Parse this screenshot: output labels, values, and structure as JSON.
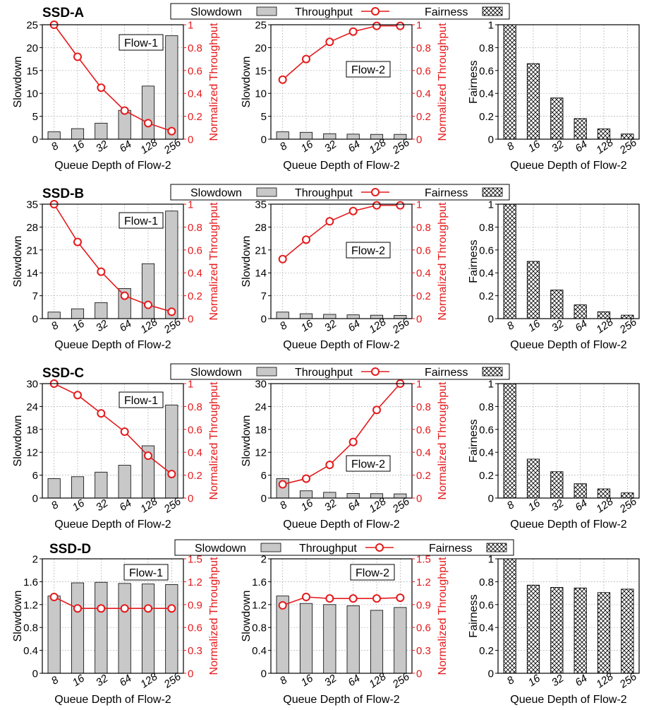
{
  "figure": {
    "legend": {
      "slowdown": "Slowdown",
      "throughput": "Throughput",
      "fairness": "Fairness"
    },
    "xlabel": "Queue Depth of Flow-2",
    "ylabel_slowdown": "Slowdown",
    "ylabel_throughput": "Normalized Throughput",
    "ylabel_fairness": "Fairness",
    "colors": {
      "bar": "#c8c8c8",
      "throughput": "#e41a1c",
      "axis": "#000000",
      "grid": "#b0b0b0"
    }
  },
  "chart_data": [
    {
      "ssd": "SSD-A",
      "categories": [
        "8",
        "16",
        "32",
        "64",
        "128",
        "256"
      ],
      "flow1": {
        "type": "bar+line",
        "label": "Flow-1",
        "slowdown": [
          1.6,
          2.3,
          3.5,
          6.3,
          11.6,
          22.6
        ],
        "throughput": [
          1.0,
          0.72,
          0.45,
          0.25,
          0.14,
          0.07
        ],
        "y1lim": [
          0,
          25
        ],
        "y1ticks": [
          0,
          5,
          10,
          15,
          20,
          25
        ],
        "y2lim": [
          0,
          1
        ],
        "y2ticks": [
          0,
          0.2,
          0.4,
          0.6,
          0.8,
          1
        ]
      },
      "flow2": {
        "type": "bar+line",
        "label": "Flow-2",
        "slowdown": [
          1.6,
          1.5,
          1.2,
          1.1,
          1.05,
          1.05
        ],
        "throughput": [
          0.52,
          0.7,
          0.85,
          0.94,
          0.99,
          0.99
        ],
        "y1lim": [
          0,
          25
        ],
        "y1ticks": [
          0,
          5,
          10,
          15,
          20,
          25
        ],
        "y2lim": [
          0,
          1
        ],
        "y2ticks": [
          0,
          0.2,
          0.4,
          0.6,
          0.8,
          1
        ]
      },
      "fairness": {
        "type": "bar",
        "values": [
          1.0,
          0.66,
          0.36,
          0.18,
          0.09,
          0.045
        ],
        "ylim": [
          0,
          1
        ],
        "yticks": [
          0,
          0.2,
          0.4,
          0.6,
          0.8,
          1
        ]
      }
    },
    {
      "ssd": "SSD-B",
      "categories": [
        "8",
        "16",
        "32",
        "64",
        "128",
        "256"
      ],
      "flow1": {
        "type": "bar+line",
        "label": "Flow-1",
        "slowdown": [
          2.0,
          3.0,
          4.9,
          9.2,
          16.8,
          32.9
        ],
        "throughput": [
          1.0,
          0.67,
          0.41,
          0.2,
          0.12,
          0.06
        ],
        "y1lim": [
          0,
          35
        ],
        "y1ticks": [
          0,
          7,
          14,
          21,
          28,
          35
        ],
        "y2lim": [
          0,
          1
        ],
        "y2ticks": [
          0,
          0.2,
          0.4,
          0.6,
          0.8,
          1
        ]
      },
      "flow2": {
        "type": "bar+line",
        "label": "Flow-2",
        "slowdown": [
          2.0,
          1.5,
          1.3,
          1.15,
          1.05,
          1.0
        ],
        "throughput": [
          0.52,
          0.69,
          0.85,
          0.94,
          0.99,
          0.99
        ],
        "y1lim": [
          0,
          35
        ],
        "y1ticks": [
          0,
          7,
          14,
          21,
          28,
          35
        ],
        "y2lim": [
          0,
          1
        ],
        "y2ticks": [
          0,
          0.2,
          0.4,
          0.6,
          0.8,
          1
        ]
      },
      "fairness": {
        "type": "bar",
        "values": [
          1.0,
          0.5,
          0.25,
          0.12,
          0.06,
          0.03
        ],
        "ylim": [
          0,
          1
        ],
        "yticks": [
          0,
          0.2,
          0.4,
          0.6,
          0.8,
          1
        ]
      }
    },
    {
      "ssd": "SSD-C",
      "categories": [
        "8",
        "16",
        "32",
        "64",
        "128",
        "256"
      ],
      "flow1": {
        "type": "bar+line",
        "label": "Flow-1",
        "slowdown": [
          5.1,
          5.6,
          6.8,
          8.6,
          13.7,
          24.4
        ],
        "throughput": [
          1.0,
          0.9,
          0.74,
          0.58,
          0.37,
          0.21
        ],
        "y1lim": [
          0,
          30
        ],
        "y1ticks": [
          0,
          6,
          12,
          18,
          24,
          30
        ],
        "y2lim": [
          0,
          1
        ],
        "y2ticks": [
          0,
          0.2,
          0.4,
          0.6,
          0.8,
          1
        ]
      },
      "flow2": {
        "type": "bar+line",
        "label": "Flow-2",
        "slowdown": [
          5.1,
          1.9,
          1.5,
          1.2,
          1.15,
          1.1
        ],
        "throughput": [
          0.12,
          0.17,
          0.29,
          0.49,
          0.77,
          1.0
        ],
        "y1lim": [
          0,
          30
        ],
        "y1ticks": [
          0,
          6,
          12,
          18,
          24,
          30
        ],
        "y2lim": [
          0,
          1
        ],
        "y2ticks": [
          0,
          0.2,
          0.4,
          0.6,
          0.8,
          1
        ]
      },
      "fairness": {
        "type": "bar",
        "values": [
          1.0,
          0.34,
          0.23,
          0.125,
          0.08,
          0.045
        ],
        "ylim": [
          0,
          1
        ],
        "yticks": [
          0,
          0.2,
          0.4,
          0.6,
          0.8,
          1
        ]
      }
    },
    {
      "ssd": "SSD-D",
      "categories": [
        "8",
        "16",
        "32",
        "64",
        "128",
        "256"
      ],
      "flow1": {
        "type": "bar+line",
        "label": "Flow-1",
        "slowdown": [
          1.35,
          1.58,
          1.59,
          1.57,
          1.56,
          1.55
        ],
        "throughput": [
          1.0,
          0.85,
          0.85,
          0.85,
          0.85,
          0.85
        ],
        "y1lim": [
          0,
          2
        ],
        "y1ticks": [
          0,
          0.4,
          0.8,
          1.2,
          1.6,
          2
        ],
        "y2lim": [
          0,
          1.5
        ],
        "y2ticks": [
          0,
          0.3,
          0.6,
          0.9,
          1.2,
          1.5
        ]
      },
      "flow2": {
        "type": "bar+line",
        "label": "Flow-2",
        "slowdown": [
          1.35,
          1.22,
          1.2,
          1.18,
          1.1,
          1.15
        ],
        "throughput": [
          0.89,
          1.0,
          0.98,
          0.98,
          0.98,
          0.99
        ],
        "y1lim": [
          0,
          2
        ],
        "y1ticks": [
          0,
          0.4,
          0.8,
          1.2,
          1.6,
          2
        ],
        "y2lim": [
          0,
          1.5
        ],
        "y2ticks": [
          0,
          0.3,
          0.6,
          0.9,
          1.2,
          1.5
        ]
      },
      "fairness": {
        "type": "bar",
        "values": [
          1.0,
          0.77,
          0.75,
          0.745,
          0.705,
          0.735
        ],
        "ylim": [
          0,
          1
        ],
        "yticks": [
          0,
          0.2,
          0.4,
          0.6,
          0.8,
          1
        ]
      }
    }
  ]
}
